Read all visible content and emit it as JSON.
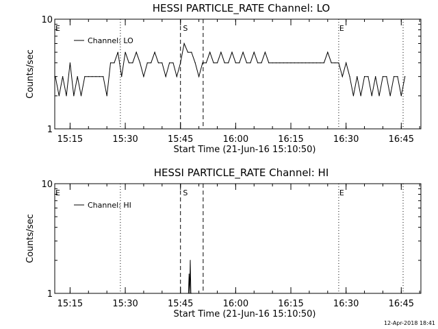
{
  "colors": {
    "background": "#ffffff",
    "foreground": "#000000"
  },
  "timestamp": "12-Apr-2018 18:41",
  "chart_data": [
    {
      "type": "line",
      "title": "HESSI PARTICLE_RATE Channel: LO",
      "xlabel": "Start Time (21-Jun-16 15:10:50)",
      "ylabel": "Counts/sec",
      "yscale": "log",
      "ylim": [
        1,
        10
      ],
      "ytick_labels": [
        "1",
        "10"
      ],
      "xtick_labels": [
        "15:15",
        "15:30",
        "15:45",
        "16:00",
        "16:15",
        "16:30",
        "16:45"
      ],
      "legend": {
        "placement": "top-left",
        "entries": [
          "Channel: LO"
        ]
      },
      "series": [
        {
          "name": "Channel: LO",
          "x": [
            "15:11",
            "15:12",
            "15:13",
            "15:14",
            "15:15",
            "15:16",
            "15:17",
            "15:18",
            "15:19",
            "15:20",
            "15:21",
            "15:22",
            "15:23",
            "15:24",
            "15:25",
            "15:26",
            "15:27",
            "15:28",
            "15:29",
            "15:30",
            "15:31",
            "15:32",
            "15:33",
            "15:34",
            "15:35",
            "15:36",
            "15:37",
            "15:38",
            "15:39",
            "15:40",
            "15:41",
            "15:42",
            "15:43",
            "15:44",
            "15:45",
            "15:46",
            "15:47",
            "15:48",
            "15:49",
            "15:50",
            "15:51",
            "15:52",
            "15:53",
            "15:54",
            "15:55",
            "15:56",
            "15:57",
            "15:58",
            "15:59",
            "16:00",
            "16:01",
            "16:02",
            "16:03",
            "16:04",
            "16:05",
            "16:06",
            "16:07",
            "16:08",
            "16:09",
            "16:10",
            "16:11",
            "16:12",
            "16:13",
            "16:14",
            "16:15",
            "16:16",
            "16:17",
            "16:18",
            "16:19",
            "16:20",
            "16:21",
            "16:22",
            "16:23",
            "16:24",
            "16:25",
            "16:26",
            "16:27",
            "16:28",
            "16:29",
            "16:30",
            "16:31",
            "16:32",
            "16:33",
            "16:34",
            "16:35",
            "16:36",
            "16:37",
            "16:38",
            "16:39",
            "16:40",
            "16:41",
            "16:42",
            "16:43",
            "16:44",
            "16:45",
            "16:46"
          ],
          "values": [
            3,
            2,
            3,
            2,
            4,
            2,
            3,
            2,
            3,
            3,
            3,
            3,
            3,
            3,
            2,
            4,
            4,
            5,
            3,
            5,
            4,
            4,
            5,
            4,
            3,
            4,
            4,
            5,
            4,
            4,
            3,
            4,
            4,
            3,
            4,
            6,
            5,
            5,
            4,
            3,
            4,
            4,
            5,
            4,
            4,
            5,
            4,
            4,
            5,
            4,
            4,
            5,
            4,
            4,
            5,
            4,
            4,
            5,
            4,
            4,
            4,
            4,
            4,
            4,
            4,
            4,
            4,
            4,
            4,
            4,
            4,
            4,
            4,
            4,
            5,
            4,
            4,
            4,
            3,
            4,
            3,
            2,
            3,
            2,
            3,
            3,
            2,
            3,
            2,
            3,
            3,
            2,
            3,
            3,
            2,
            3
          ]
        }
      ],
      "annotations": [
        {
          "text": "E",
          "x": "15:10:50"
        },
        {
          "text": "S",
          "x": "15:45:30"
        },
        {
          "text": "E",
          "x": "16:28:00"
        }
      ],
      "vlines": {
        "dotted": [
          "15:28:40",
          "16:28:00",
          "16:45:30"
        ],
        "dashed": [
          "15:45:00",
          "15:51:10"
        ]
      }
    },
    {
      "type": "line",
      "title": "HESSI PARTICLE_RATE Channel: HI",
      "xlabel": "Start Time (21-Jun-16 15:10:50)",
      "ylabel": "Counts/sec",
      "yscale": "log",
      "ylim": [
        1,
        10
      ],
      "ytick_labels": [
        "1",
        "10"
      ],
      "xtick_labels": [
        "15:15",
        "15:30",
        "15:45",
        "16:00",
        "16:15",
        "16:30",
        "16:45"
      ],
      "legend": {
        "placement": "top-left",
        "entries": [
          "Channel: HI"
        ]
      },
      "series": [
        {
          "name": "Channel: HI",
          "x": [
            "15:47:10",
            "15:47:20",
            "15:47:30",
            "15:47:40",
            "15:47:50",
            "15:48:00"
          ],
          "values": [
            1,
            1.5,
            1,
            2,
            1,
            1
          ]
        }
      ],
      "annotations": [
        {
          "text": "E",
          "x": "15:10:50"
        },
        {
          "text": "S",
          "x": "15:45:30"
        },
        {
          "text": "E",
          "x": "16:28:00"
        }
      ],
      "vlines": {
        "dotted": [
          "15:28:40",
          "16:28:00",
          "16:45:30"
        ],
        "dashed": [
          "15:45:00",
          "15:51:10"
        ]
      }
    }
  ]
}
